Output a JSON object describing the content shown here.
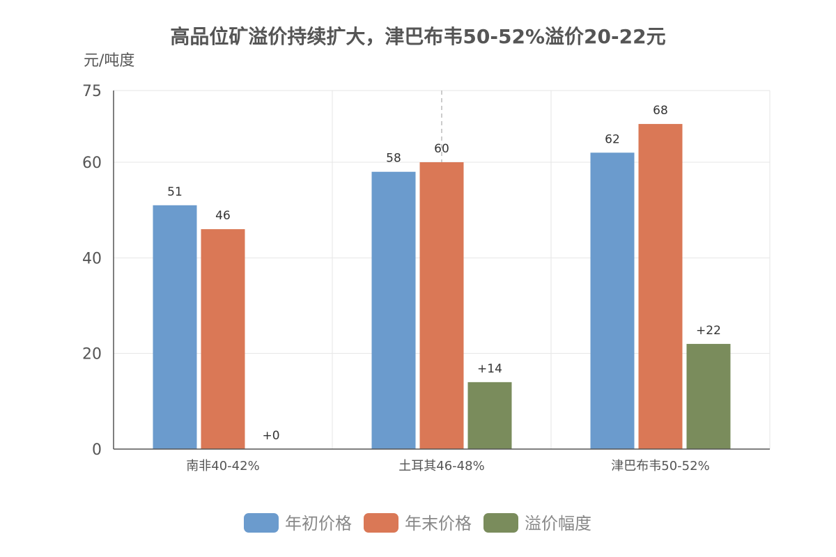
{
  "chart_data": {
    "type": "bar",
    "title": "高品位矿溢价持续扩大，津巴布韦50-52%溢价20-22元",
    "ylabel": "元/吨度",
    "categories": [
      "南非40-42%",
      "土耳其46-48%",
      "津巴布韦50-52%"
    ],
    "yticks": [
      0,
      20,
      40,
      60,
      75
    ],
    "ylim": [
      0,
      75
    ],
    "grid": true,
    "legend_position": "bottom",
    "series": [
      {
        "name": "年初价格",
        "color": "#6b9bcd",
        "values": [
          51,
          58,
          62
        ],
        "labels": [
          "51",
          "58",
          "62"
        ]
      },
      {
        "name": "年末价格",
        "color": "#da7856",
        "values": [
          46,
          60,
          68
        ],
        "labels": [
          "46",
          "60",
          "68"
        ]
      },
      {
        "name": "溢价幅度",
        "color": "#7a8c5c",
        "values": [
          0,
          14,
          22
        ],
        "labels": [
          "+0",
          "+14",
          "+22"
        ]
      }
    ]
  }
}
